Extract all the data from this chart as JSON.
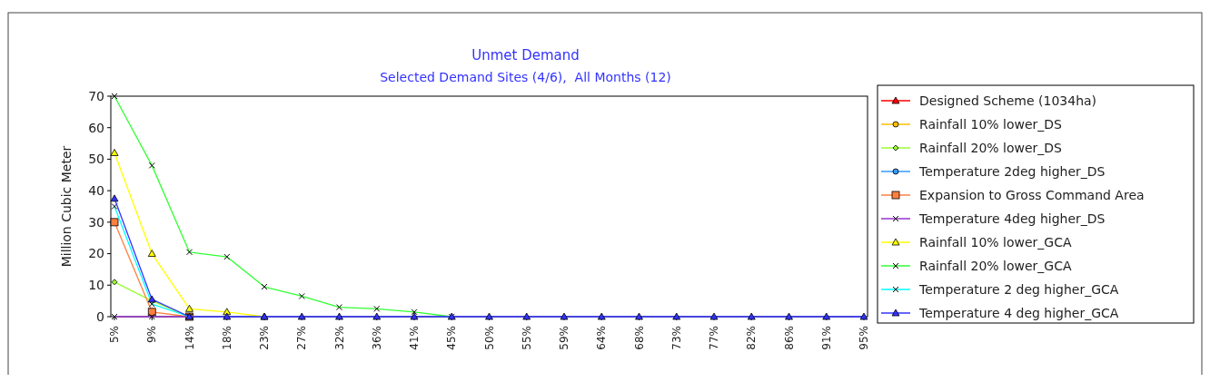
{
  "chart_data": {
    "type": "line",
    "title": "Unmet Demand",
    "subtitle": "Selected Demand Sites (4/6),  All Months (12)",
    "ylabel": "Million Cubic Meter",
    "categories": [
      "5%",
      "9%",
      "14%",
      "18%",
      "23%",
      "27%",
      "32%",
      "36%",
      "41%",
      "45%",
      "50%",
      "55%",
      "59%",
      "64%",
      "68%",
      "73%",
      "77%",
      "82%",
      "86%",
      "91%",
      "95%"
    ],
    "ylim": [
      0,
      70
    ],
    "yticks": [
      0,
      10,
      20,
      30,
      40,
      50,
      60,
      70
    ],
    "grid": false,
    "legend": "right",
    "series": [
      {
        "name": "Designed Scheme (1034ha)",
        "color": "#ff0000",
        "marker": "triangle",
        "values": [
          null,
          null,
          null,
          null,
          null,
          null,
          null,
          null,
          null,
          null,
          null,
          null,
          null,
          null,
          null,
          null,
          null,
          null,
          null,
          null,
          null
        ]
      },
      {
        "name": "Rainfall 10% lower_DS",
        "color": "#ffc000",
        "marker": "circle",
        "values": [
          null,
          null,
          null,
          null,
          null,
          null,
          null,
          null,
          null,
          null,
          null,
          null,
          null,
          null,
          null,
          null,
          null,
          null,
          null,
          null,
          null
        ]
      },
      {
        "name": "Rainfall 20% lower_DS",
        "color": "#99ff33",
        "marker": "diamond",
        "values": [
          11,
          5,
          0,
          null,
          null,
          null,
          null,
          null,
          null,
          null,
          null,
          null,
          null,
          null,
          null,
          null,
          null,
          null,
          null,
          null,
          null
        ]
      },
      {
        "name": "Temperature 2deg higher_DS",
        "color": "#3399ff",
        "marker": "circle",
        "values": [
          null,
          null,
          null,
          null,
          null,
          null,
          null,
          null,
          null,
          null,
          null,
          null,
          null,
          null,
          null,
          null,
          null,
          null,
          null,
          null,
          null
        ]
      },
      {
        "name": "Expansion to Gross Command Area",
        "color": "#ff8040",
        "marker": "square",
        "values": [
          30,
          1.5,
          0,
          null,
          null,
          null,
          null,
          null,
          null,
          null,
          null,
          null,
          null,
          null,
          null,
          null,
          null,
          null,
          null,
          null,
          null
        ]
      },
      {
        "name": "Temperature 4deg higher_DS",
        "color": "#9933cc",
        "marker": "cross",
        "values": [
          0,
          0,
          0,
          null,
          null,
          null,
          null,
          null,
          null,
          null,
          null,
          null,
          null,
          null,
          null,
          null,
          null,
          null,
          null,
          null,
          null
        ]
      },
      {
        "name": "Rainfall 10% lower_GCA",
        "color": "#ffff00",
        "marker": "triangle",
        "values": [
          52,
          20,
          2.5,
          1.5,
          0,
          null,
          null,
          null,
          null,
          null,
          null,
          null,
          null,
          null,
          null,
          null,
          null,
          null,
          null,
          null,
          null
        ]
      },
      {
        "name": "Rainfall 20% lower_GCA",
        "color": "#33ff33",
        "marker": "cross",
        "values": [
          70,
          48,
          20.5,
          19,
          9.5,
          6.5,
          3,
          2.5,
          1.5,
          0,
          null,
          null,
          null,
          null,
          null,
          null,
          null,
          null,
          null,
          null,
          null
        ]
      },
      {
        "name": "Temperature 2 deg higher_GCA",
        "color": "#00ffff",
        "marker": "cross",
        "values": [
          35,
          4,
          0,
          null,
          null,
          null,
          null,
          null,
          null,
          null,
          null,
          null,
          null,
          null,
          null,
          null,
          null,
          null,
          null,
          null,
          null
        ]
      },
      {
        "name": "Temperature 4 deg higher_GCA",
        "color": "#3333ff",
        "marker": "triangle",
        "values": [
          37.5,
          5.5,
          0,
          0,
          0,
          0,
          0,
          0,
          0,
          0,
          0,
          0,
          0,
          0,
          0,
          0,
          0,
          0,
          0,
          0,
          0
        ]
      }
    ]
  }
}
